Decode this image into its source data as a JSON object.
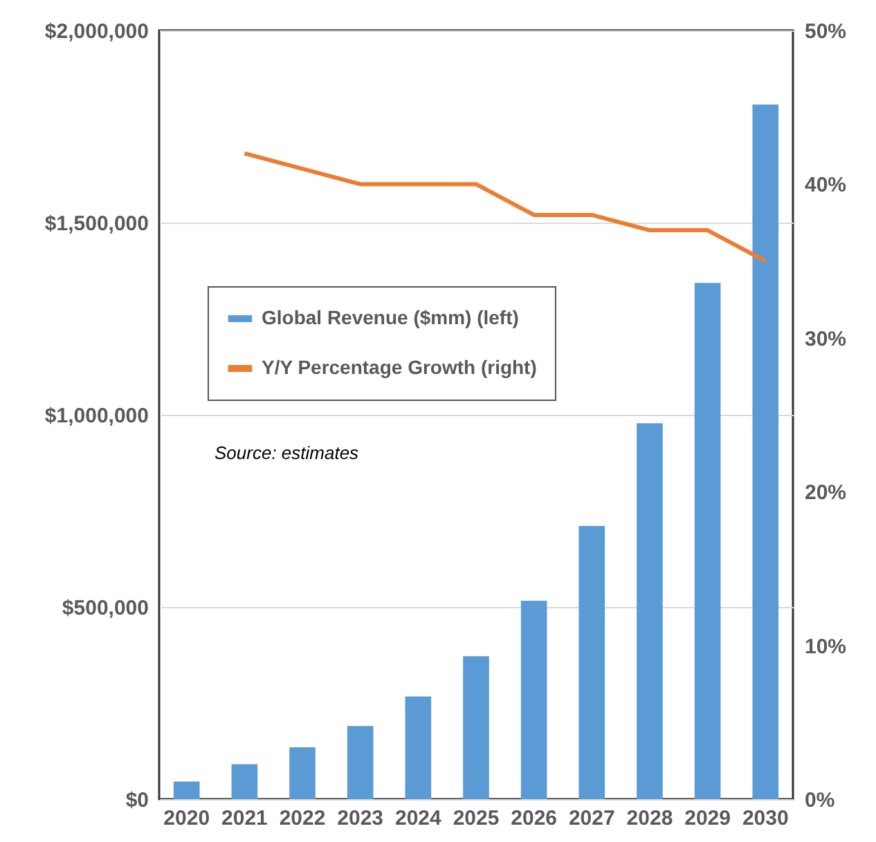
{
  "chart_data": {
    "type": "bar",
    "categories": [
      "2020",
      "2021",
      "2022",
      "2023",
      "2024",
      "2025",
      "2026",
      "2027",
      "2028",
      "2029",
      "2030"
    ],
    "series": [
      {
        "name": "Global Revenue ($mm) (left)",
        "color": "#5b9bd5",
        "values": [
          46000,
          91000,
          135000,
          190000,
          267000,
          372000,
          516000,
          711000,
          978000,
          1343000,
          1807000
        ]
      },
      {
        "name": "Y/Y Percentage Growth (right)",
        "type": "line",
        "axis": "y2",
        "color": "#ed7d31",
        "values": [
          null,
          42,
          41,
          40,
          40,
          40,
          38,
          38,
          37,
          37,
          35
        ]
      }
    ],
    "ylim": [
      0,
      2000000
    ],
    "yticks": [
      {
        "value": 0,
        "label": "$0"
      },
      {
        "value": 500000,
        "label": "$500,000"
      },
      {
        "value": 1000000,
        "label": "$1,000,000"
      },
      {
        "value": 1500000,
        "label": "$1,500,000"
      },
      {
        "value": 2000000,
        "label": "$2,000,000"
      }
    ],
    "y2lim": [
      0,
      50
    ],
    "y2ticks": [
      {
        "value": 0,
        "label": "0%"
      },
      {
        "value": 10,
        "label": "10%"
      },
      {
        "value": 20,
        "label": "20%"
      },
      {
        "value": 30,
        "label": "30%"
      },
      {
        "value": 40,
        "label": "40%"
      },
      {
        "value": 50,
        "label": "50%"
      }
    ],
    "grid": "y",
    "legend": "left",
    "annotations": [
      "Source: estimates"
    ]
  }
}
